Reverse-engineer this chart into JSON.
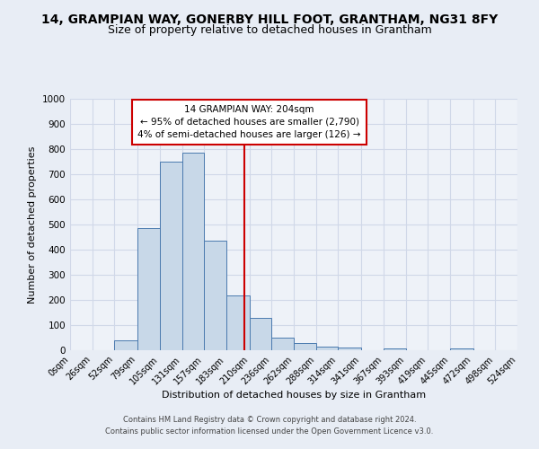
{
  "title_line1": "14, GRAMPIAN WAY, GONERBY HILL FOOT, GRANTHAM, NG31 8FY",
  "title_line2": "Size of property relative to detached houses in Grantham",
  "xlabel": "Distribution of detached houses by size in Grantham",
  "ylabel": "Number of detached properties",
  "bin_edges": [
    0,
    26,
    52,
    79,
    105,
    131,
    157,
    183,
    210,
    236,
    262,
    288,
    314,
    341,
    367,
    393,
    419,
    445,
    472,
    498,
    524
  ],
  "bar_heights": [
    0,
    0,
    40,
    485,
    750,
    785,
    435,
    218,
    128,
    50,
    28,
    15,
    10,
    0,
    8,
    0,
    0,
    8,
    0,
    0
  ],
  "bar_color": "#c8d8e8",
  "bar_edge_color": "#4a7aaf",
  "property_size": 204,
  "vline_color": "#cc0000",
  "annotation_line1": "14 GRAMPIAN WAY: 204sqm",
  "annotation_line2": "← 95% of detached houses are smaller (2,790)",
  "annotation_line3": "4% of semi-detached houses are larger (126) →",
  "annotation_box_color": "#ffffff",
  "annotation_box_edge_color": "#cc0000",
  "ylim": [
    0,
    1000
  ],
  "yticks": [
    0,
    100,
    200,
    300,
    400,
    500,
    600,
    700,
    800,
    900,
    1000
  ],
  "background_color": "#e8edf5",
  "plot_bg_color": "#eef2f8",
  "grid_color": "#d0d8e8",
  "footer_line1": "Contains HM Land Registry data © Crown copyright and database right 2024.",
  "footer_line2": "Contains public sector information licensed under the Open Government Licence v3.0.",
  "title_fontsize": 10,
  "subtitle_fontsize": 9,
  "tick_label_fontsize": 7,
  "ylabel_fontsize": 8,
  "xlabel_fontsize": 8,
  "annotation_fontsize": 7.5,
  "footer_fontsize": 6
}
